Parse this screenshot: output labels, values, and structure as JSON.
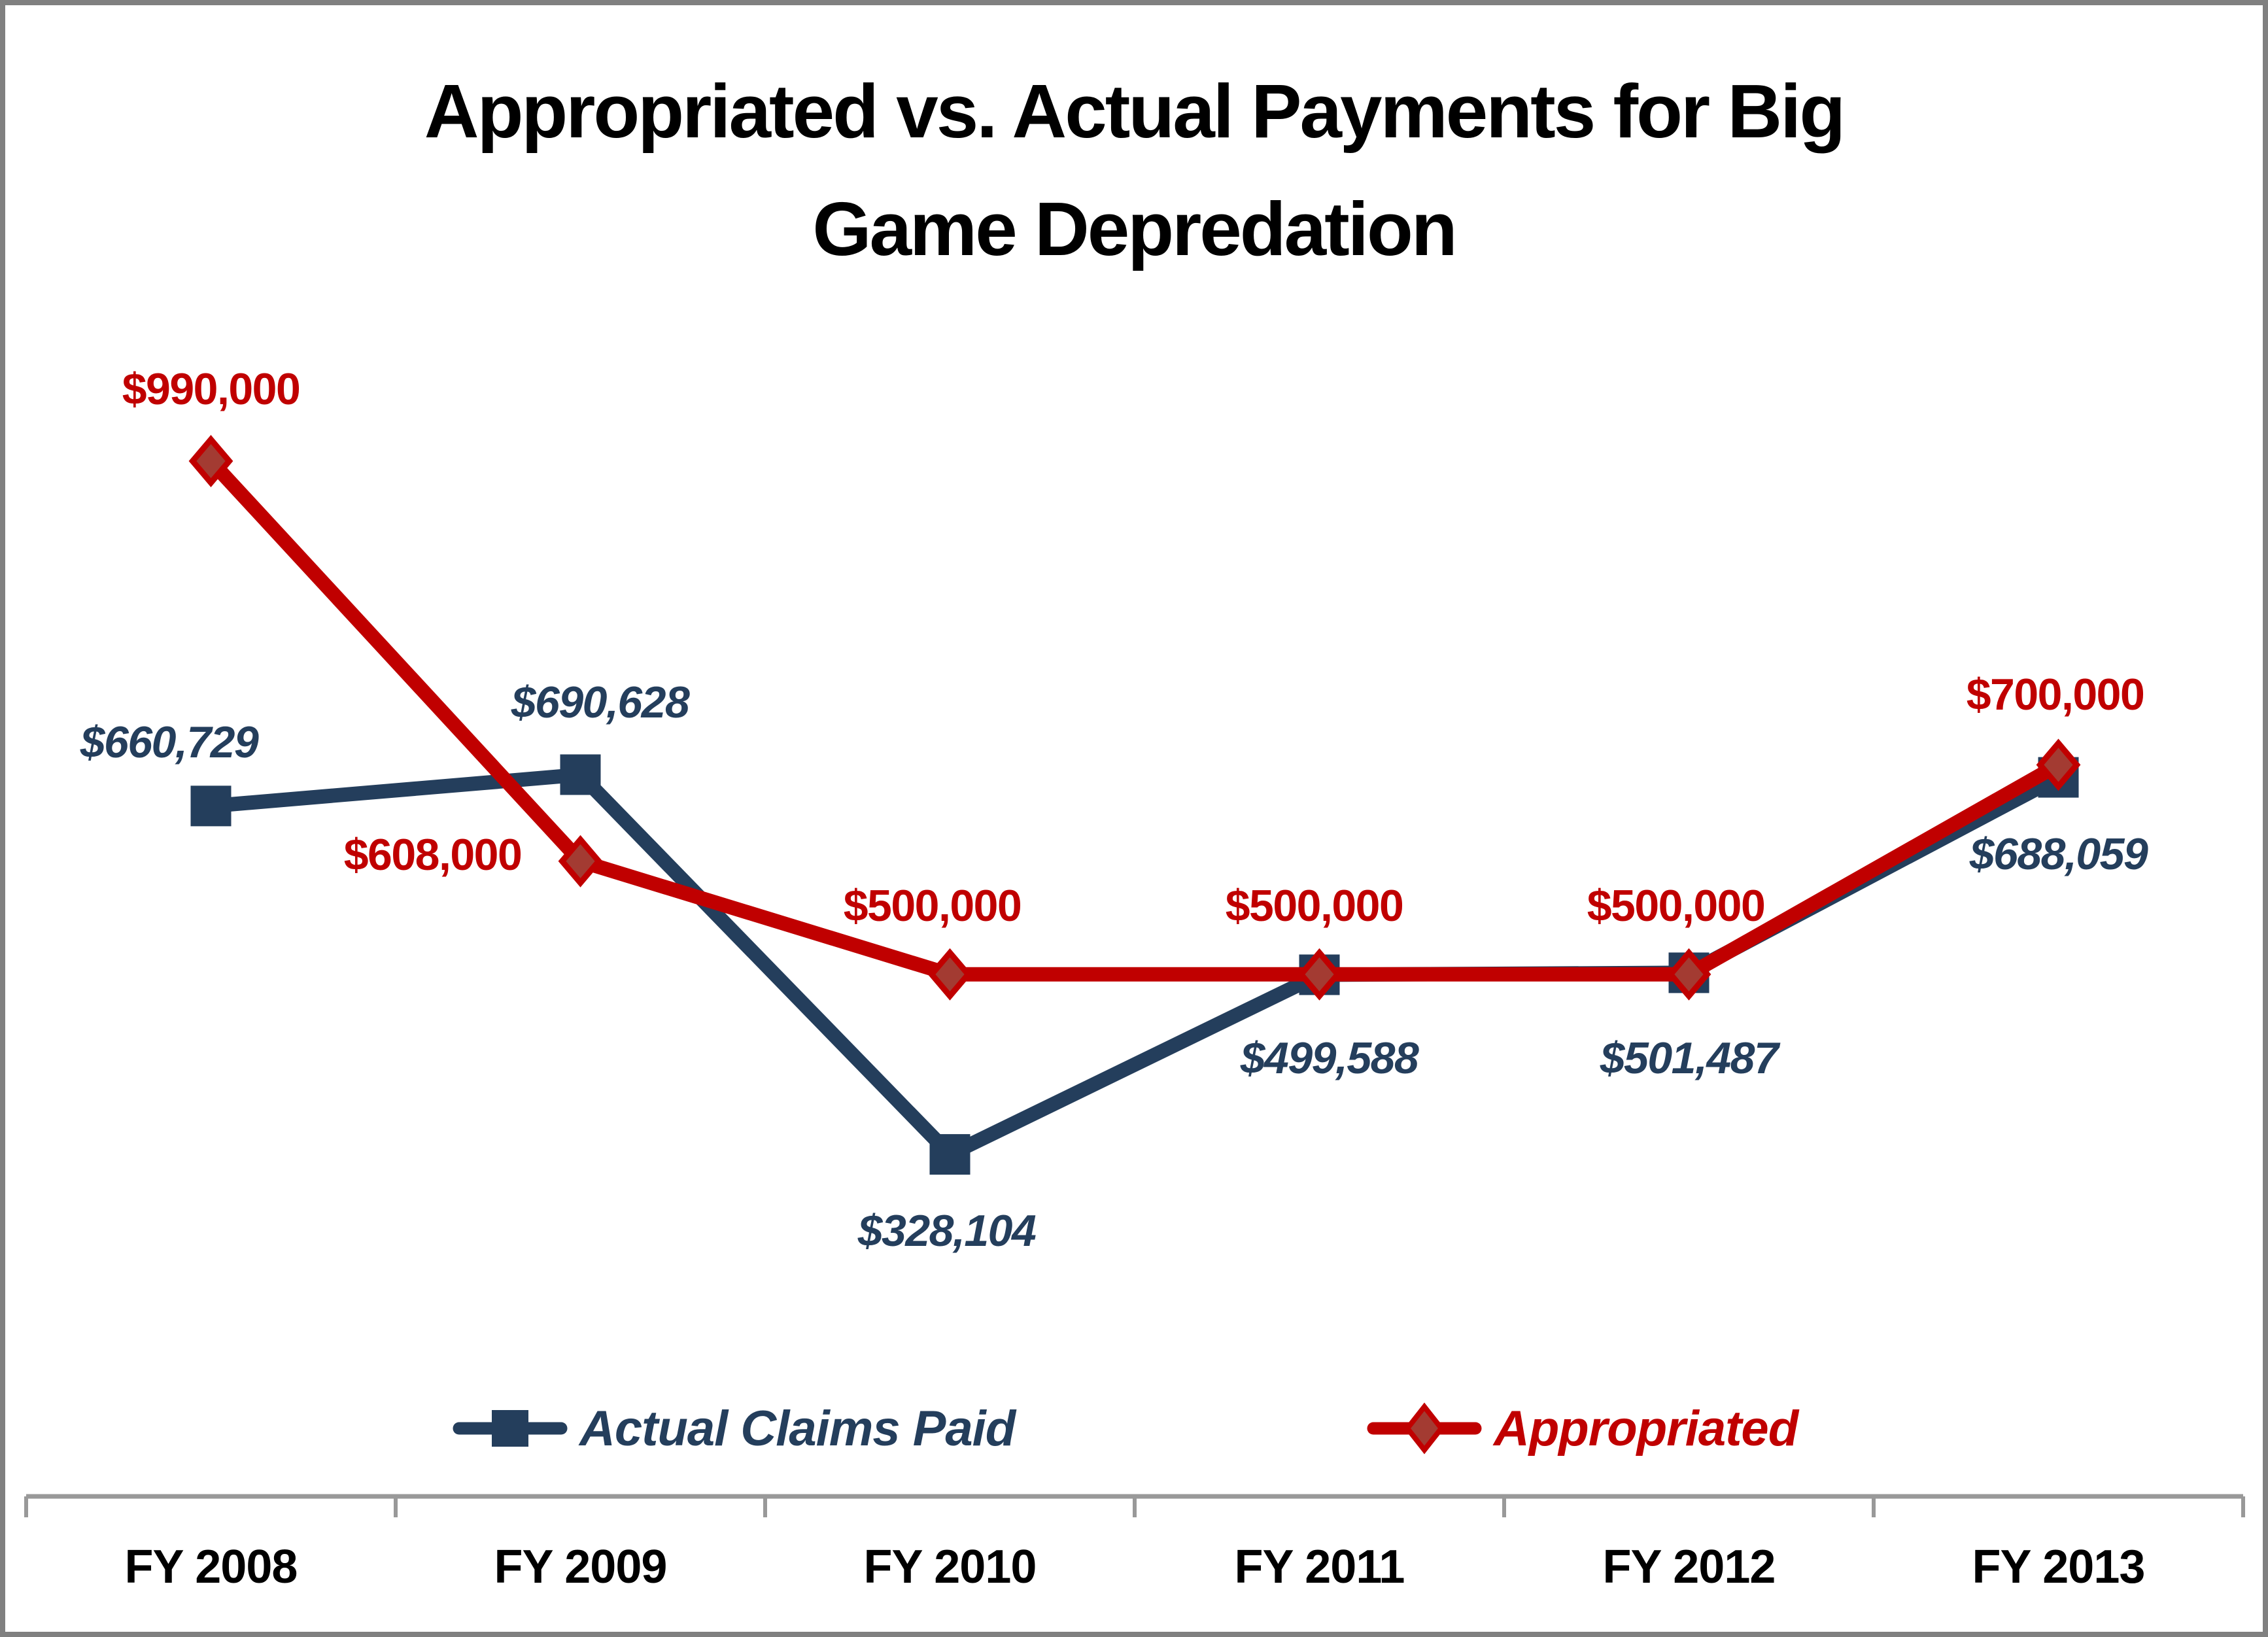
{
  "title": {
    "line1": "Appropriated vs. Actual Payments for Big",
    "line2": "Game Depredation",
    "full": "Appropriated vs. Actual Payments for Big Game Depredation",
    "color": "#000000"
  },
  "chart_data": {
    "type": "line",
    "title": "Appropriated vs. Actual Payments for Big Game Depredation",
    "categories": [
      "FY 2008",
      "FY 2009",
      "FY 2010",
      "FY 2011",
      "FY 2012",
      "FY 2013"
    ],
    "series": [
      {
        "name": "Actual Claims Paid",
        "color": "#243E5C",
        "marker": "square",
        "label_style": "bold-italic",
        "values": [
          660729,
          690628,
          328104,
          499588,
          501487,
          688059
        ],
        "labels": [
          "$660,729",
          "$690,628",
          "$328,104",
          "$499,588",
          "$501,487",
          "$688,059"
        ]
      },
      {
        "name": "Appropriated",
        "color": "#C00000",
        "marker": "diamond",
        "marker_fill": "#A33B32",
        "label_style": "bold",
        "values": [
          990000,
          608000,
          500000,
          500000,
          500000,
          700000
        ],
        "labels": [
          "$990,000",
          "$608,000",
          "$500,000",
          "$500,000",
          "$500,000",
          "$700,000"
        ]
      }
    ],
    "legend_position": "bottom",
    "grid": false,
    "y_axis_visible": false,
    "x_axis_color": "#999999",
    "ylim": [
      0,
      1100000
    ]
  },
  "colors": {
    "frame_border": "#808080",
    "background": "#FFFFFF",
    "axis": "#999999",
    "navy": "#243E5C",
    "red": "#C00000",
    "diamond_fill": "#A33B32"
  }
}
